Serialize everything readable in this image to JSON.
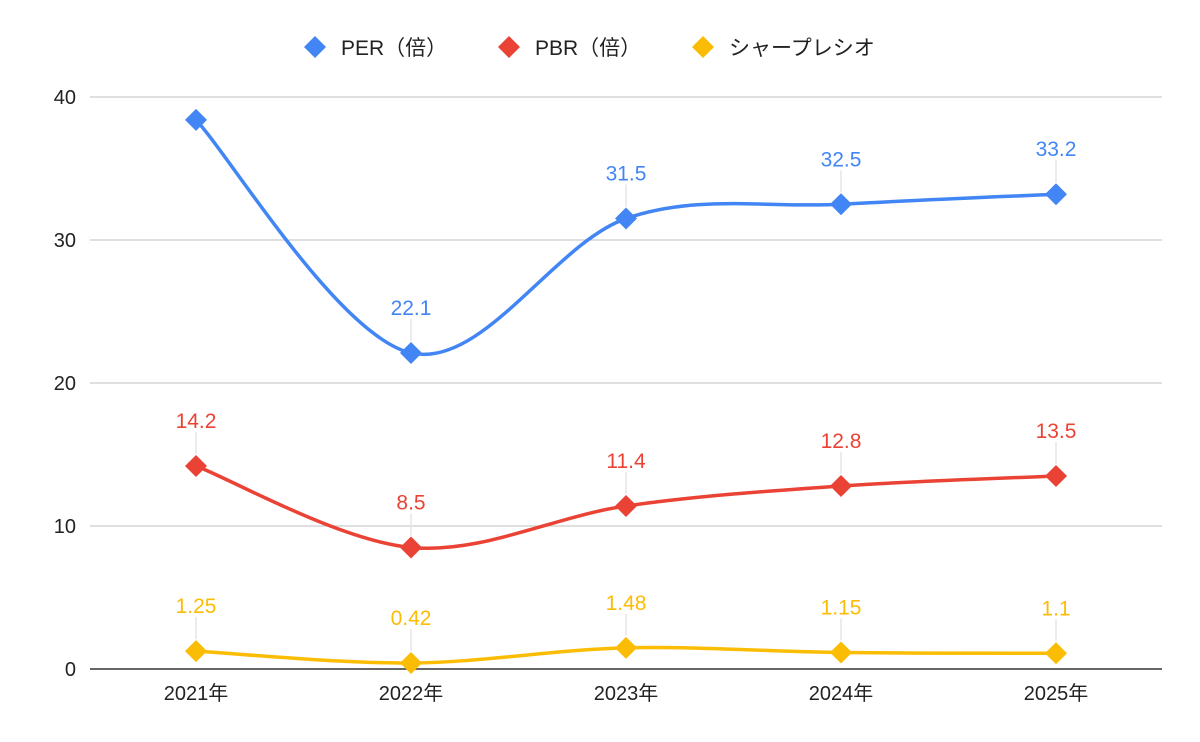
{
  "chart_data": {
    "type": "line",
    "title": "",
    "xlabel": "",
    "ylabel": "",
    "categories": [
      "2021年",
      "2022年",
      "2023年",
      "2024年",
      "2025年"
    ],
    "ylim": [
      0,
      40
    ],
    "yticks": [
      0,
      10,
      20,
      30,
      40
    ],
    "grid": true,
    "legend_position": "top",
    "smooth": true,
    "series": [
      {
        "name": "PER（倍）",
        "color": "#4285f4",
        "values": [
          38.4,
          22.1,
          31.5,
          32.5,
          33.2
        ],
        "labels": [
          null,
          "22.1",
          "31.5",
          "32.5",
          "33.2"
        ]
      },
      {
        "name": "PBR（倍）",
        "color": "#ea4335",
        "values": [
          14.2,
          8.5,
          11.4,
          12.8,
          13.5
        ],
        "labels": [
          "14.2",
          "8.5",
          "11.4",
          "12.8",
          "13.5"
        ]
      },
      {
        "name": "シャープレシオ",
        "color": "#fbbc04",
        "values": [
          1.25,
          0.42,
          1.48,
          1.15,
          1.1
        ],
        "labels": [
          "1.25",
          "0.42",
          "1.48",
          "1.15",
          "1.1"
        ]
      }
    ]
  }
}
